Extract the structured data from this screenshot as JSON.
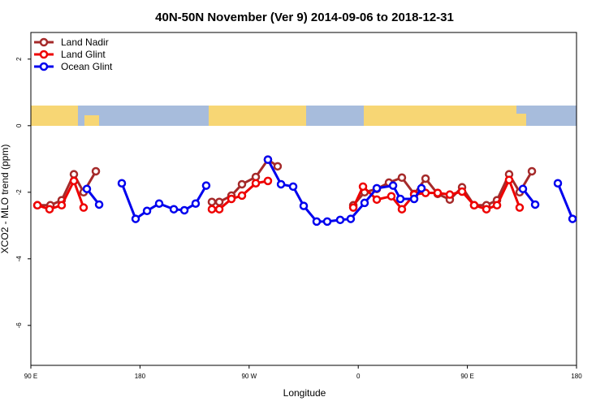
{
  "chart_data": {
    "type": "line",
    "title": "40N-50N November (Ver 9)   2014-09-06 to 2018-12-31",
    "x_label": "Longitude",
    "y_label": "XCO2 - MLO trend (ppm)",
    "xlim": [
      90,
      540
    ],
    "ylim": [
      -7.2,
      2.8
    ],
    "xticks": [
      {
        "value": 90,
        "label": "90 E"
      },
      180,
      {
        "value": 270,
        "label": "90 W"
      },
      {
        "value": 360,
        "label": "0"
      },
      {
        "value": 450,
        "label": "90 E"
      },
      {
        "value": 540,
        "label": "180"
      }
    ],
    "yticks": [
      2,
      0,
      -2,
      -4,
      -6
    ],
    "legend": "top-left",
    "series": [
      {
        "name": "Land Nadir",
        "color": "#a52a2a",
        "x": [
          95.4,
          106.1,
          115.4,
          125.5,
          133.5,
          143.6,
          null,
          239.3,
          245.4,
          255.4,
          264.1,
          275.5,
          285.5,
          293.5,
          null,
          355.9,
          365.2,
          375.3,
          385.3,
          396.0,
          406.1,
          415.5,
          425.5,
          435.5,
          445.6,
          455.6,
          465.7,
          474.4,
          484.4,
          493.1,
          503.2
        ],
        "values": [
          -2.39,
          -2.39,
          -2.24,
          -1.46,
          -2.0,
          -1.37,
          null,
          -2.29,
          -2.29,
          -2.1,
          -1.76,
          -1.54,
          -1.02,
          -1.22,
          null,
          -2.39,
          -2.0,
          -1.9,
          -1.71,
          -1.56,
          -2.05,
          -1.59,
          -2.05,
          -2.22,
          -1.85,
          -2.39,
          -2.39,
          -2.24,
          -1.46,
          -2.0,
          -1.37
        ]
      },
      {
        "name": "Land Glint",
        "color": "#ee0000",
        "x": [
          95.4,
          105.4,
          115.4,
          125.5,
          133.5,
          null,
          239.3,
          245.4,
          255.4,
          264.1,
          275.5,
          285.5,
          null,
          355.9,
          363.9,
          375.3,
          387.3,
          396.0,
          406.1,
          415.5,
          425.5,
          435.5,
          445.6,
          455.6,
          465.7,
          474.4,
          484.4,
          493.1
        ],
        "values": [
          -2.39,
          -2.51,
          -2.39,
          -1.66,
          -2.46,
          null,
          -2.51,
          -2.51,
          -2.2,
          -2.1,
          -1.73,
          -1.66,
          null,
          -2.46,
          -1.83,
          -2.22,
          -2.12,
          -2.51,
          -2.07,
          -2.02,
          -2.02,
          -2.07,
          -1.98,
          -2.39,
          -2.51,
          -2.39,
          -1.63,
          -2.46
        ]
      },
      {
        "name": "Ocean Glint",
        "color": "#0000ee",
        "x": [
          136.2,
          146.3,
          null,
          165.0,
          176.4,
          185.8,
          195.8,
          207.9,
          216.6,
          225.9,
          234.6,
          null,
          285.5,
          296.3,
          306.3,
          315.0,
          325.7,
          334.4,
          345.1,
          353.8,
          365.2,
          375.3,
          388.7,
          394.7,
          406.1,
          412.1,
          null,
          495.8,
          505.9,
          null,
          524.6,
          536.7
        ],
        "values": [
          -1.9,
          -2.37,
          null,
          -1.73,
          -2.8,
          -2.56,
          -2.34,
          -2.51,
          -2.54,
          -2.34,
          -1.8,
          null,
          -1.02,
          -1.76,
          -1.83,
          -2.41,
          -2.88,
          -2.88,
          -2.83,
          -2.8,
          -2.32,
          -1.88,
          -1.8,
          -2.2,
          -2.2,
          -1.88,
          null,
          -1.9,
          -2.37,
          null,
          -1.73,
          -2.8
        ]
      }
    ]
  }
}
